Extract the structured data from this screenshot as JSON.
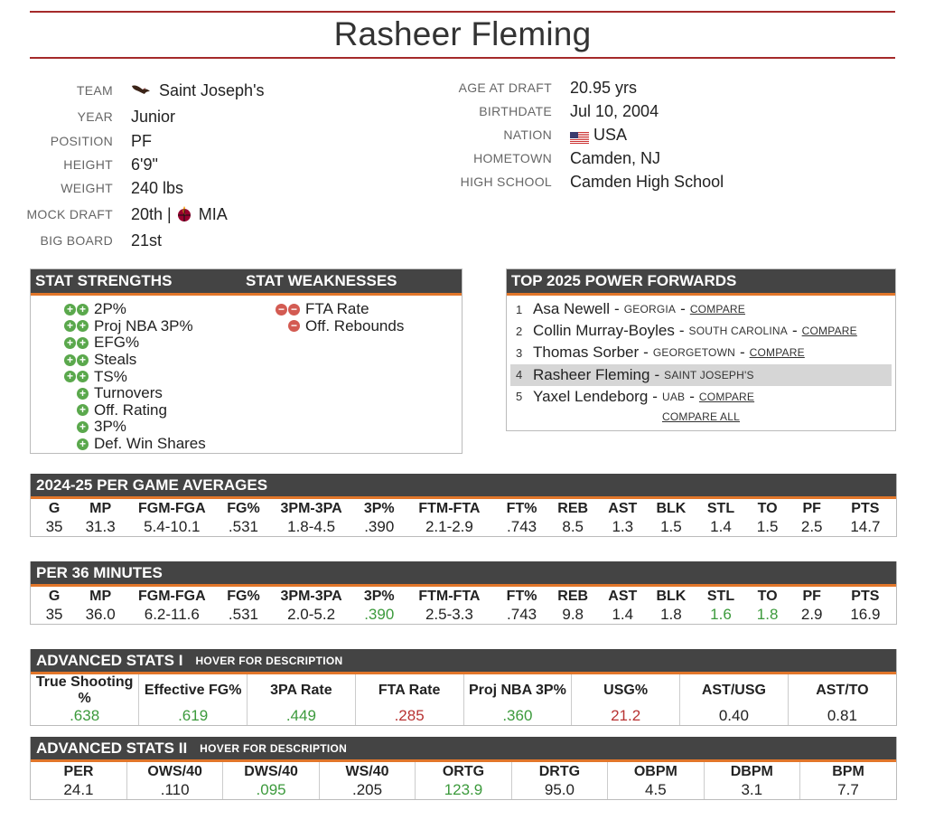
{
  "player": {
    "name": "Rasheer Fleming"
  },
  "bio_left": [
    {
      "label": "TEAM",
      "value": "Saint Joseph's",
      "icon": "hawk-icon"
    },
    {
      "label": "YEAR",
      "value": "Junior"
    },
    {
      "label": "POSITION",
      "value": "PF"
    },
    {
      "label": "HEIGHT",
      "value": "6'9\""
    },
    {
      "label": "WEIGHT",
      "value": "240 lbs"
    },
    {
      "label": "MOCK DRAFT",
      "value": "20th |",
      "team": "MIA",
      "icon": "heat-logo-icon"
    },
    {
      "label": "BIG BOARD",
      "value": "21st"
    }
  ],
  "bio_right": [
    {
      "label": "AGE AT DRAFT",
      "value": "20.95 yrs"
    },
    {
      "label": "BIRTHDATE",
      "value": "Jul 10, 2004"
    },
    {
      "label": "NATION",
      "value": "USA",
      "icon": "us-flag-icon"
    },
    {
      "label": "HOMETOWN",
      "value": "Camden, NJ"
    },
    {
      "label": "HIGH SCHOOL",
      "value": "Camden High School"
    }
  ],
  "strengths": {
    "title": "STAT STRENGTHS",
    "items": [
      {
        "label": "2P%",
        "dots": 2
      },
      {
        "label": "Proj NBA 3P%",
        "dots": 2
      },
      {
        "label": "EFG%",
        "dots": 2
      },
      {
        "label": "Steals",
        "dots": 2
      },
      {
        "label": "TS%",
        "dots": 2
      },
      {
        "label": "Turnovers",
        "dots": 1
      },
      {
        "label": "Off. Rating",
        "dots": 1
      },
      {
        "label": "3P%",
        "dots": 1
      },
      {
        "label": "Def. Win Shares",
        "dots": 1
      }
    ]
  },
  "weaknesses": {
    "title": "STAT WEAKNESSES",
    "items": [
      {
        "label": "FTA Rate",
        "dots": 2
      },
      {
        "label": "Off. Rebounds",
        "dots": 1
      }
    ]
  },
  "top_forwards": {
    "title": "TOP 2025 POWER FORWARDS",
    "items": [
      {
        "rank": "1",
        "name": "Asa Newell",
        "school": "GEORGIA",
        "link": "COMPARE"
      },
      {
        "rank": "2",
        "name": "Collin Murray-Boyles",
        "school": "SOUTH CAROLINA",
        "link": "COMPARE"
      },
      {
        "rank": "3",
        "name": "Thomas Sorber",
        "school": "GEORGETOWN",
        "link": "COMPARE"
      },
      {
        "rank": "4",
        "name": "Rasheer Fleming",
        "school": "SAINT JOSEPH'S",
        "link": ""
      },
      {
        "rank": "5",
        "name": "Yaxel Lendeborg",
        "school": "UAB",
        "link": "COMPARE"
      }
    ],
    "compare_all": "COMPARE ALL"
  },
  "per_game": {
    "title": "2024-25 PER GAME AVERAGES",
    "headers": [
      "G",
      "MP",
      "FGM-FGA",
      "FG%",
      "3PM-3PA",
      "3P%",
      "FTM-FTA",
      "FT%",
      "REB",
      "AST",
      "BLK",
      "STL",
      "TO",
      "PF",
      "PTS"
    ],
    "values": [
      "35",
      "31.3",
      "5.4-10.1",
      ".531",
      "1.8-4.5",
      ".390",
      "2.1-2.9",
      ".743",
      "8.5",
      "1.3",
      "1.5",
      "1.4",
      "1.5",
      "2.5",
      "14.7"
    ],
    "colors": [
      "",
      "",
      "",
      "",
      "",
      "",
      "",
      "",
      "",
      "",
      "",
      "",
      "",
      "",
      ""
    ]
  },
  "per36": {
    "title": "PER 36 MINUTES",
    "headers": [
      "G",
      "MP",
      "FGM-FGA",
      "FG%",
      "3PM-3PA",
      "3P%",
      "FTM-FTA",
      "FT%",
      "REB",
      "AST",
      "BLK",
      "STL",
      "TO",
      "PF",
      "PTS"
    ],
    "values": [
      "35",
      "36.0",
      "6.2-11.6",
      ".531",
      "2.0-5.2",
      ".390",
      "2.5-3.3",
      ".743",
      "9.8",
      "1.4",
      "1.8",
      "1.6",
      "1.8",
      "2.9",
      "16.9"
    ],
    "colors": [
      "",
      "",
      "",
      "",
      "",
      "green",
      "",
      "",
      "",
      "",
      "",
      "green",
      "green",
      "",
      ""
    ]
  },
  "adv1": {
    "title": "ADVANCED STATS I",
    "hover": "HOVER FOR DESCRIPTION",
    "headers": [
      "True Shooting %",
      "Effective FG%",
      "3PA Rate",
      "FTA Rate",
      "Proj NBA 3P%",
      "USG%",
      "AST/USG",
      "AST/TO"
    ],
    "values": [
      ".638",
      ".619",
      ".449",
      ".285",
      ".360",
      "21.2",
      "0.40",
      "0.81"
    ],
    "colors": [
      "green",
      "green",
      "green",
      "red",
      "green",
      "red",
      "",
      ""
    ]
  },
  "adv2": {
    "title": "ADVANCED STATS II",
    "hover": "HOVER FOR DESCRIPTION",
    "headers": [
      "PER",
      "OWS/40",
      "DWS/40",
      "WS/40",
      "ORTG",
      "DRTG",
      "OBPM",
      "DBPM",
      "BPM"
    ],
    "values": [
      "24.1",
      ".110",
      ".095",
      ".205",
      "123.9",
      "95.0",
      "4.5",
      "3.1",
      "7.7"
    ],
    "colors": [
      "",
      "",
      "green",
      "",
      "green",
      "",
      "",
      "",
      ""
    ]
  }
}
